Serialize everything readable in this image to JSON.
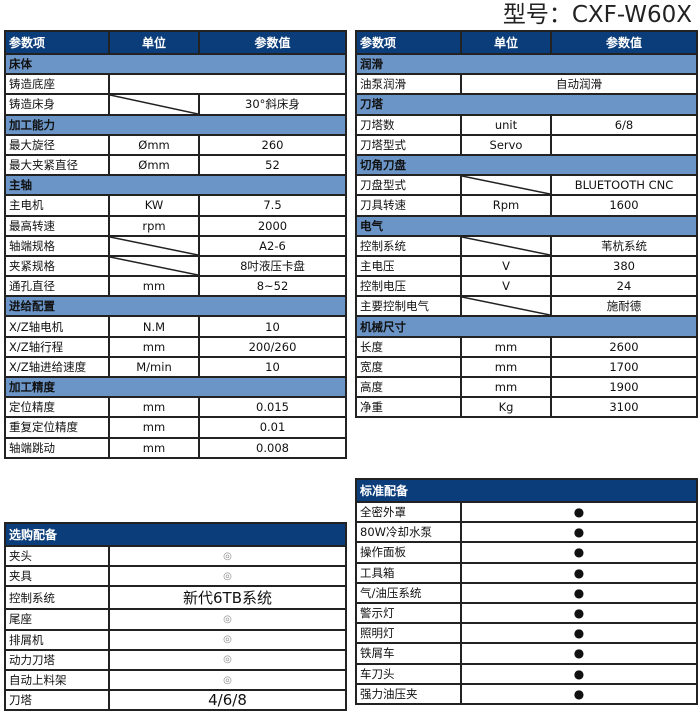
{
  "title": "型号：CXF-W60X",
  "columns": [
    "参数项",
    "单位",
    "参数值"
  ],
  "left": [
    {
      "section": "床体"
    },
    {
      "name": "铸造底座",
      "merged": ""
    },
    {
      "name": "铸造床身",
      "unit": "",
      "slash": true,
      "value": "30°斜床身"
    },
    {
      "section": "加工能力"
    },
    {
      "name": "最大旋径",
      "unit": "Ømm",
      "value": "260"
    },
    {
      "name": "最大夹紧直径",
      "unit": "Ømm",
      "value": "52"
    },
    {
      "section": "主轴"
    },
    {
      "name": "主电机",
      "unit": "KW",
      "value": "7.5"
    },
    {
      "name": "最高转速",
      "unit": "rpm",
      "value": "2000"
    },
    {
      "name": "轴端规格",
      "unit": "",
      "slash": true,
      "value": "A2-6"
    },
    {
      "name": "夹紧规格",
      "unit": "",
      "slash": true,
      "value": "8吋液压卡盘"
    },
    {
      "name": "通孔直径",
      "unit": "mm",
      "value": "8~52"
    },
    {
      "section": "进给配置"
    },
    {
      "name": "X/Z轴电机",
      "unit": "N.M",
      "value": "10"
    },
    {
      "name": "X/Z轴行程",
      "unit": "mm",
      "value": "200/260"
    },
    {
      "name": "X/Z轴进给速度",
      "unit": "M/min",
      "value": "10"
    },
    {
      "section": "加工精度"
    },
    {
      "name": "定位精度",
      "unit": "mm",
      "value": "0.015"
    },
    {
      "name": "重复定位精度",
      "unit": "mm",
      "value": "0.01"
    },
    {
      "name": "轴端跳动",
      "unit": "mm",
      "value": "0.008"
    }
  ],
  "right": [
    {
      "section": "润滑"
    },
    {
      "name": "油泵润滑",
      "merged": "自动润滑"
    },
    {
      "section": "刀塔"
    },
    {
      "name": "刀塔数",
      "unit": "unit",
      "value": "6/8"
    },
    {
      "name": "刀塔型式",
      "unit": "Servo",
      "value": ""
    },
    {
      "section": "切角刀盘"
    },
    {
      "name": "刀盘型式",
      "unit": "",
      "slash": true,
      "value": "BLUETOOTH CNC"
    },
    {
      "name": "刀具转速",
      "unit": "Rpm",
      "value": "1600"
    },
    {
      "section": "电气"
    },
    {
      "name": "控制系统",
      "unit": "",
      "slash": true,
      "value": "苇杭系统"
    },
    {
      "name": "主电压",
      "unit": "V",
      "value": "380"
    },
    {
      "name": "控制电压",
      "unit": "V",
      "value": "24"
    },
    {
      "name": "主要控制电气",
      "unit": "",
      "slash": true,
      "value": "施耐德"
    },
    {
      "section": "机械尺寸"
    },
    {
      "name": "长度",
      "unit": "mm",
      "value": "2600"
    },
    {
      "name": "宽度",
      "unit": "mm",
      "value": "1700"
    },
    {
      "name": "高度",
      "unit": "mm",
      "value": "1900"
    },
    {
      "name": "净重",
      "unit": "Kg",
      "value": "3100"
    }
  ],
  "optional": {
    "title": "选购配备",
    "items": [
      {
        "name": "夹头",
        "value": "◎",
        "mark": true
      },
      {
        "name": "夹具",
        "value": "◎",
        "mark": true
      },
      {
        "name": "控制系统",
        "value": "新代6TB系统"
      },
      {
        "name": "尾座",
        "value": "◎",
        "mark": true
      },
      {
        "name": "排屑机",
        "value": "◎",
        "mark": true
      },
      {
        "name": "动力刀塔",
        "value": "◎",
        "mark": true
      },
      {
        "name": "自动上料架",
        "value": "◎",
        "mark": true
      },
      {
        "name": "刀塔",
        "value": "4/6/8"
      }
    ]
  },
  "standard": {
    "title": "标准配备",
    "items": [
      {
        "name": "全密外罩",
        "value": "●"
      },
      {
        "name": "80W冷却水泵",
        "value": "●"
      },
      {
        "name": "操作面板",
        "value": "●"
      },
      {
        "name": "工具箱",
        "value": "●"
      },
      {
        "name": "气/油压系统",
        "value": "●"
      },
      {
        "name": "警示灯",
        "value": "●"
      },
      {
        "name": "照明灯",
        "value": "●"
      },
      {
        "name": "铁屑车",
        "value": "●"
      },
      {
        "name": "车刀头",
        "value": "●"
      },
      {
        "name": "强力油压夹",
        "value": "●"
      }
    ]
  }
}
